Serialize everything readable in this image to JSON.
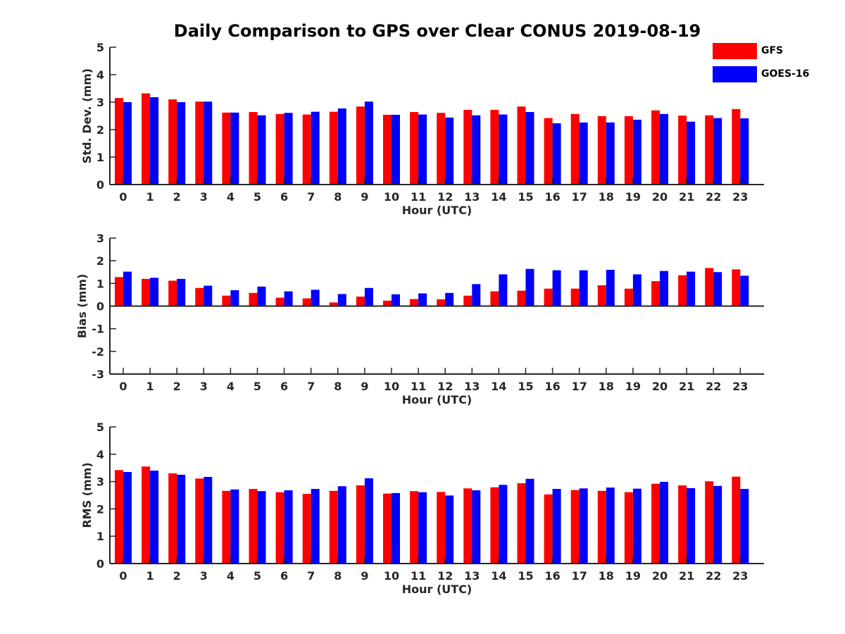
{
  "title": "Daily Comparison to GPS over Clear CONUS 2019-08-19",
  "colors": {
    "gfs": "#ff0000",
    "goes": "#0000ff",
    "axis": "#262626"
  },
  "legend": [
    {
      "label": "GFS",
      "color": "#ff0000"
    },
    {
      "label": "GOES-16",
      "color": "#0000ff"
    }
  ],
  "chart_data": [
    {
      "type": "bar",
      "title": "",
      "xlabel": "Hour (UTC)",
      "ylabel": "Std. Dev. (mm)",
      "ylim": [
        0,
        5
      ],
      "yticks": [
        "0",
        "1",
        "2",
        "3",
        "4",
        "5"
      ],
      "categories": [
        "0",
        "1",
        "2",
        "3",
        "4",
        "5",
        "6",
        "7",
        "8",
        "9",
        "10",
        "11",
        "12",
        "13",
        "14",
        "15",
        "16",
        "17",
        "18",
        "19",
        "20",
        "21",
        "22",
        "23"
      ],
      "series": [
        {
          "name": "GFS",
          "values": [
            3.15,
            3.32,
            3.1,
            3.02,
            2.62,
            2.64,
            2.57,
            2.55,
            2.65,
            2.84,
            2.54,
            2.64,
            2.61,
            2.72,
            2.72,
            2.84,
            2.42,
            2.57,
            2.49,
            2.49,
            2.7,
            2.51,
            2.52,
            2.75
          ]
        },
        {
          "name": "GOES-16",
          "values": [
            3.0,
            3.18,
            3.0,
            3.02,
            2.62,
            2.52,
            2.61,
            2.65,
            2.77,
            3.02,
            2.54,
            2.55,
            2.44,
            2.52,
            2.55,
            2.64,
            2.23,
            2.26,
            2.26,
            2.36,
            2.57,
            2.29,
            2.42,
            2.41
          ]
        }
      ]
    },
    {
      "type": "bar",
      "title": "",
      "xlabel": "Hour (UTC)",
      "ylabel": "Bias (mm)",
      "ylim": [
        -3,
        3
      ],
      "yticks": [
        "-3",
        "-2",
        "-1",
        "0",
        "1",
        "2",
        "3"
      ],
      "categories": [
        "0",
        "1",
        "2",
        "3",
        "4",
        "5",
        "6",
        "7",
        "8",
        "9",
        "10",
        "11",
        "12",
        "13",
        "14",
        "15",
        "16",
        "17",
        "18",
        "19",
        "20",
        "21",
        "22",
        "23"
      ],
      "series": [
        {
          "name": "GFS",
          "values": [
            1.28,
            1.2,
            1.12,
            0.8,
            0.46,
            0.58,
            0.37,
            0.34,
            0.16,
            0.42,
            0.24,
            0.31,
            0.3,
            0.46,
            0.65,
            0.68,
            0.77,
            0.77,
            0.92,
            0.77,
            1.1,
            1.36,
            1.68,
            1.62
          ]
        },
        {
          "name": "GOES-16",
          "values": [
            1.52,
            1.25,
            1.2,
            0.9,
            0.7,
            0.86,
            0.65,
            0.72,
            0.53,
            0.8,
            0.52,
            0.56,
            0.58,
            0.97,
            1.4,
            1.64,
            1.58,
            1.58,
            1.6,
            1.4,
            1.55,
            1.52,
            1.5,
            1.34
          ]
        }
      ]
    },
    {
      "type": "bar",
      "title": "",
      "xlabel": "Hour (UTC)",
      "ylabel": "RMS (mm)",
      "ylim": [
        0,
        5
      ],
      "yticks": [
        "0",
        "1",
        "2",
        "3",
        "4",
        "5"
      ],
      "categories": [
        "0",
        "1",
        "2",
        "3",
        "4",
        "5",
        "6",
        "7",
        "8",
        "9",
        "10",
        "11",
        "12",
        "13",
        "14",
        "15",
        "16",
        "17",
        "18",
        "19",
        "20",
        "21",
        "22",
        "23"
      ],
      "series": [
        {
          "name": "GFS",
          "values": [
            3.42,
            3.55,
            3.3,
            3.11,
            2.66,
            2.73,
            2.61,
            2.55,
            2.66,
            2.86,
            2.56,
            2.65,
            2.62,
            2.75,
            2.79,
            2.94,
            2.53,
            2.69,
            2.66,
            2.61,
            2.92,
            2.86,
            3.01,
            3.18
          ]
        },
        {
          "name": "GOES-16",
          "values": [
            3.35,
            3.4,
            3.25,
            3.17,
            2.71,
            2.65,
            2.68,
            2.73,
            2.83,
            3.12,
            2.58,
            2.61,
            2.49,
            2.68,
            2.88,
            3.1,
            2.73,
            2.75,
            2.78,
            2.74,
            2.99,
            2.76,
            2.84,
            2.73
          ]
        }
      ]
    }
  ]
}
